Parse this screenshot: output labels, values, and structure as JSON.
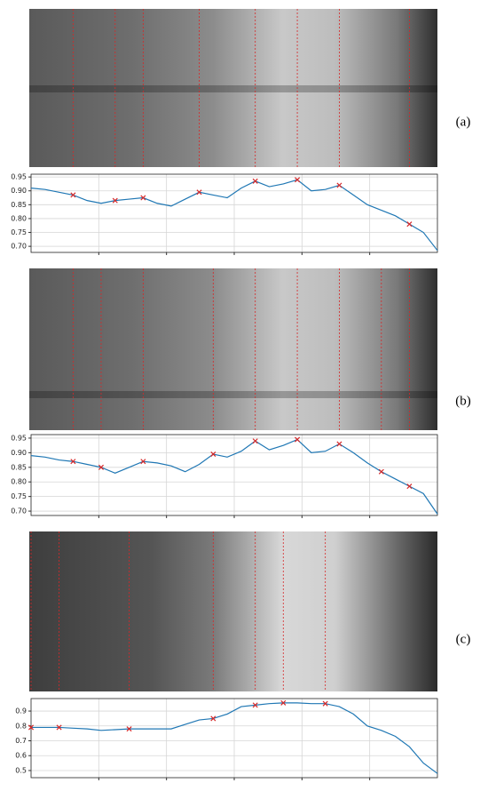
{
  "chart_data": [
    {
      "type": "line",
      "label": "(a)",
      "categories": [
        null,
        null,
        null,
        null,
        null,
        null,
        null,
        null,
        null,
        null,
        null,
        null,
        null,
        null,
        null,
        null,
        null,
        null,
        null,
        null,
        null,
        null,
        null,
        null,
        null,
        null,
        null,
        null,
        null,
        null
      ],
      "series": [
        {
          "color": "#1f77b4",
          "values": [
            0.91,
            0.905,
            0.895,
            0.885,
            0.865,
            0.855,
            0.865,
            0.87,
            0.875,
            0.855,
            0.845,
            0.87,
            0.895,
            0.885,
            0.875,
            0.91,
            0.935,
            0.915,
            0.925,
            0.94,
            0.9,
            0.905,
            0.92,
            0.885,
            0.85,
            0.83,
            0.81,
            0.78,
            0.75,
            0.685
          ]
        },
        {
          "color": "#d62728",
          "marker": "x",
          "values": [
            null,
            null,
            null,
            0.885,
            null,
            null,
            0.865,
            null,
            0.875,
            null,
            null,
            null,
            0.895,
            null,
            null,
            null,
            0.935,
            null,
            null,
            0.94,
            null,
            null,
            0.92,
            null,
            null,
            null,
            null,
            0.78,
            null,
            null
          ]
        }
      ],
      "ylim": [
        0.678,
        0.96
      ],
      "yticks": [
        {
          "value": 0.7,
          "label": "0.70"
        },
        {
          "value": 0.75,
          "label": "0.75"
        },
        {
          "value": 0.8,
          "label": "0.80"
        },
        {
          "value": 0.85,
          "label": "0.85"
        },
        {
          "value": 0.9,
          "label": "0.90"
        },
        {
          "value": 0.95,
          "label": "0.95"
        }
      ],
      "grid": true
    },
    {
      "type": "line",
      "label": "(b)",
      "categories": [
        null,
        null,
        null,
        null,
        null,
        null,
        null,
        null,
        null,
        null,
        null,
        null,
        null,
        null,
        null,
        null,
        null,
        null,
        null,
        null,
        null,
        null,
        null,
        null,
        null,
        null,
        null,
        null,
        null,
        null
      ],
      "series": [
        {
          "color": "#1f77b4",
          "values": [
            0.89,
            0.885,
            0.875,
            0.87,
            0.86,
            0.85,
            0.83,
            0.85,
            0.87,
            0.865,
            0.855,
            0.835,
            0.86,
            0.895,
            0.885,
            0.905,
            0.94,
            0.91,
            0.925,
            0.945,
            0.9,
            0.905,
            0.93,
            0.9,
            0.865,
            0.835,
            0.81,
            0.785,
            0.76,
            0.69
          ]
        },
        {
          "color": "#d62728",
          "marker": "x",
          "values": [
            null,
            null,
            null,
            0.87,
            null,
            0.85,
            null,
            null,
            0.87,
            null,
            null,
            null,
            null,
            0.895,
            null,
            null,
            0.94,
            null,
            null,
            0.945,
            null,
            null,
            0.93,
            null,
            null,
            0.835,
            null,
            0.785,
            null,
            null
          ]
        }
      ],
      "ylim": [
        0.685,
        0.962
      ],
      "yticks": [
        {
          "value": 0.7,
          "label": "0.70"
        },
        {
          "value": 0.75,
          "label": "0.75"
        },
        {
          "value": 0.8,
          "label": "0.80"
        },
        {
          "value": 0.85,
          "label": "0.85"
        },
        {
          "value": 0.9,
          "label": "0.90"
        },
        {
          "value": 0.95,
          "label": "0.95"
        }
      ],
      "grid": true
    },
    {
      "type": "line",
      "label": "(c)",
      "categories": [
        null,
        null,
        null,
        null,
        null,
        null,
        null,
        null,
        null,
        null,
        null,
        null,
        null,
        null,
        null,
        null,
        null,
        null,
        null,
        null,
        null,
        null,
        null,
        null,
        null,
        null,
        null,
        null,
        null,
        null
      ],
      "series": [
        {
          "color": "#1f77b4",
          "values": [
            0.79,
            0.79,
            0.79,
            0.785,
            0.78,
            0.77,
            0.775,
            0.78,
            0.78,
            0.78,
            0.78,
            0.81,
            0.84,
            0.85,
            0.88,
            0.93,
            0.94,
            0.95,
            0.955,
            0.955,
            0.95,
            0.95,
            0.93,
            0.88,
            0.8,
            0.77,
            0.73,
            0.66,
            0.55,
            0.48
          ]
        },
        {
          "color": "#d62728",
          "marker": "x",
          "values": [
            0.79,
            null,
            0.79,
            null,
            null,
            null,
            null,
            0.78,
            null,
            null,
            null,
            null,
            null,
            0.85,
            null,
            null,
            0.94,
            null,
            0.955,
            null,
            null,
            0.95,
            null,
            null,
            null,
            null,
            null,
            null,
            null,
            null
          ]
        }
      ],
      "ylim": [
        0.452,
        0.984
      ],
      "yticks": [
        0.5,
        0.6,
        0.7,
        0.8,
        0.9
      ],
      "grid": true
    }
  ]
}
